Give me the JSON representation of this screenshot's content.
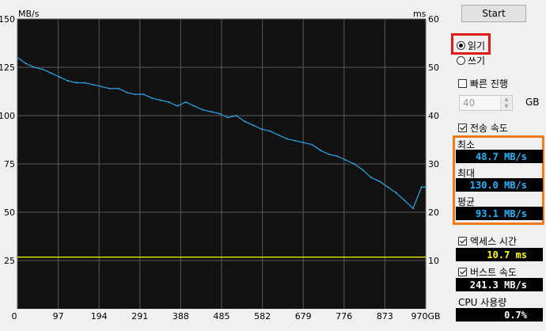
{
  "chart_data": {
    "type": "line",
    "left_axis_unit": "MB/s",
    "right_axis_unit": "ms",
    "y_ticks_left": [
      "150",
      "125",
      "100",
      "75",
      "50",
      "25"
    ],
    "y_ticks_right": [
      "60",
      "50",
      "40",
      "30",
      "20",
      "10"
    ],
    "x_ticks": [
      "0",
      "97",
      "194",
      "291",
      "388",
      "485",
      "582",
      "679",
      "776",
      "873",
      "970GB"
    ],
    "xlim": [
      0,
      970
    ],
    "ylim_left": [
      0,
      150
    ],
    "ylim_right": [
      0,
      60
    ],
    "grid": true,
    "series": [
      {
        "color": "#2ba3e6",
        "axis": "left",
        "x": [
          0,
          20,
          40,
          60,
          80,
          100,
          120,
          140,
          160,
          180,
          200,
          220,
          240,
          260,
          280,
          300,
          320,
          340,
          360,
          380,
          400,
          420,
          440,
          460,
          480,
          500,
          520,
          540,
          560,
          580,
          600,
          620,
          640,
          660,
          680,
          700,
          720,
          740,
          760,
          780,
          800,
          820,
          840,
          860,
          880,
          900,
          920,
          940,
          960,
          970
        ],
        "y": [
          130,
          127,
          125,
          124,
          122,
          120,
          118,
          117,
          117,
          116,
          115,
          114,
          114,
          112,
          111,
          111,
          109,
          108,
          107,
          105,
          107,
          105,
          103,
          102,
          101,
          99,
          100,
          97,
          95,
          93,
          92,
          90,
          88,
          87,
          86,
          85,
          82,
          80,
          79,
          77,
          75,
          72,
          68,
          66,
          63,
          60,
          56,
          52,
          63,
          63
        ]
      },
      {
        "color": "#e8e800",
        "axis": "right",
        "x": [
          0,
          970
        ],
        "y": [
          10.7,
          10.7
        ]
      }
    ]
  },
  "panel": {
    "start_label": "Start",
    "read_label": "읽기",
    "write_label": "쓰기",
    "quick_test_label": "빠른 진행",
    "quick_test_value": "40",
    "quick_test_unit": "GB",
    "transfer_rate_label": "전송 속도",
    "min_label": "최소",
    "min_value": "48.7 MB/s",
    "max_label": "최대",
    "max_value": "130.0 MB/s",
    "avg_label": "평균",
    "avg_value": "93.1 MB/s",
    "access_time_label": "엑세스 시간",
    "access_time_value": "10.7 ms",
    "burst_rate_label": "버스트 속도",
    "burst_rate_value": "241.3 MB/s",
    "cpu_label": "CPU 사용량",
    "cpu_value": "0.7%",
    "speed_color": "#1fb6ff",
    "access_color": "#ffff00",
    "white_text": "#ffffff"
  }
}
